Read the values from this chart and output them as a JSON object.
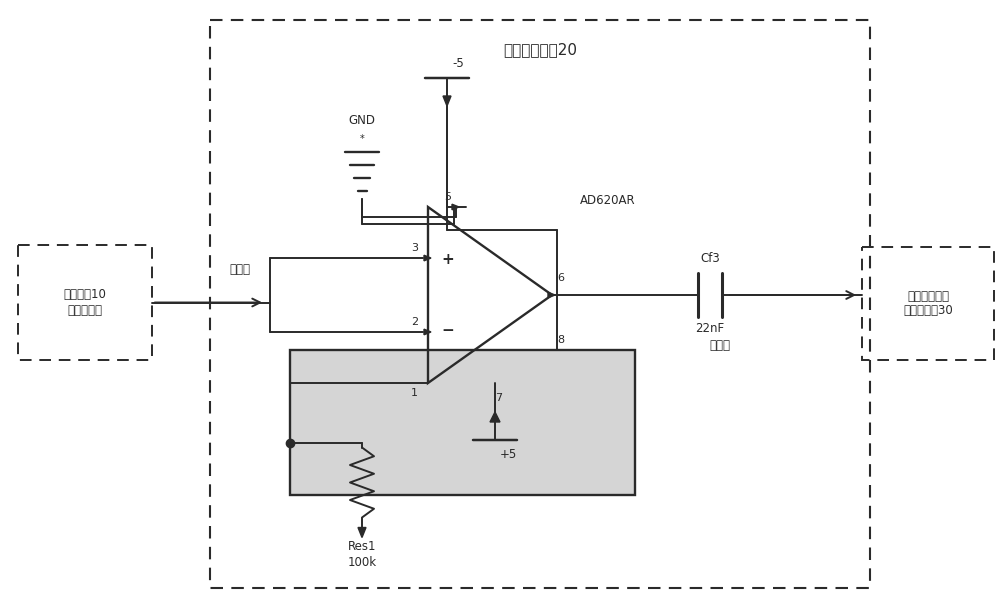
{
  "fig_w": 10.0,
  "fig_h": 6.05,
  "bg": "#e8e8e8",
  "fig_bg": "#ffffff",
  "lw": 1.4,
  "fs_main": 11,
  "fs_label": 8.5,
  "fs_pin": 8,
  "title": "放大滤波电路20",
  "left_text": "检测探卄10\n的检测线圈",
  "right_text": "集成信号发生\n及处理电路30",
  "input_label": "输入端",
  "output_label": "输出端",
  "gnd_label": "GND",
  "neg5_label": "-5",
  "pos5_label": "+5",
  "cap_label1": "Cf3",
  "cap_label2": "22nF",
  "res_label1": "Res1",
  "res_label2": "100k",
  "ad_label": "AD620AR"
}
